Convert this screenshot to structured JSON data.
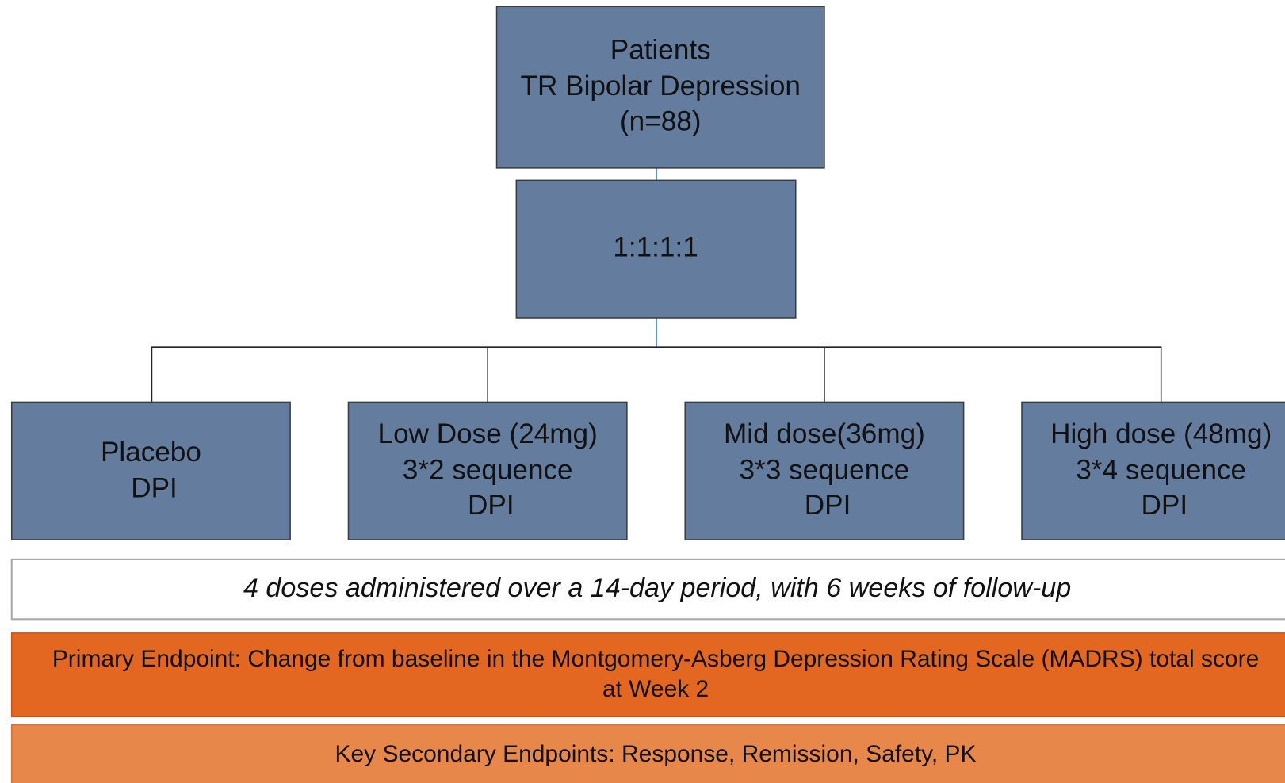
{
  "nodes": [
    {
      "lines": [
        "Patients",
        "TR Bipolar Depression",
        "(n=88)"
      ]
    },
    {
      "lines": [
        "1:1:1:1"
      ]
    },
    {
      "lines": [
        "Placebo",
        "DPI"
      ]
    },
    {
      "lines": [
        "Low Dose (24mg)",
        "3*2 sequence",
        "DPI"
      ]
    },
    {
      "lines": [
        "Mid dose(36mg)",
        "3*3 sequence",
        "DPI"
      ]
    },
    {
      "lines": [
        "High dose (48mg)",
        "3*4 sequence",
        "DPI"
      ]
    }
  ],
  "schedule": "4 doses administered over a 14-day period, with 6 weeks of follow-up",
  "primary_endpoint": [
    "Primary Endpoint: Change from baseline in the Montgomery-Asberg Depression Rating Scale (MADRS) total score",
    "at Week 2"
  ],
  "secondary_endpoints": "Key Secondary Endpoints: Response, Remission, Safety, PK"
}
